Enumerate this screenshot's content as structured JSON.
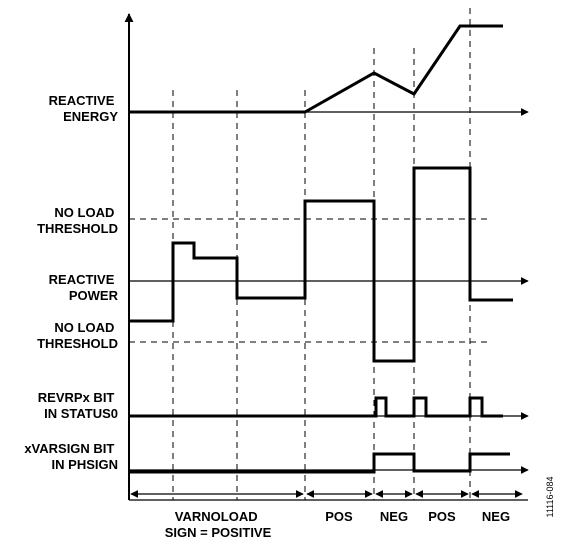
{
  "labels": {
    "reactive_energy": [
      "REACTIVE",
      "ENERGY"
    ],
    "no_load_threshold_upper": [
      "NO LOAD",
      "THRESHOLD"
    ],
    "reactive_power": [
      "REACTIVE",
      "POWER"
    ],
    "no_load_threshold_lower": [
      "NO LOAD",
      "THRESHOLD"
    ],
    "revrp_bit": [
      "REVRPx BIT",
      "IN STATUS0"
    ],
    "varsign_bit": [
      "xVARSIGN BIT",
      "IN PHSIGN"
    ]
  },
  "segments": {
    "varnoload": [
      "VARNOLOAD",
      "SIGN = POSITIVE"
    ],
    "pos1": "POS",
    "neg1": "NEG",
    "pos2": "POS",
    "neg2": "NEG"
  },
  "figure_id": "11116-084"
}
